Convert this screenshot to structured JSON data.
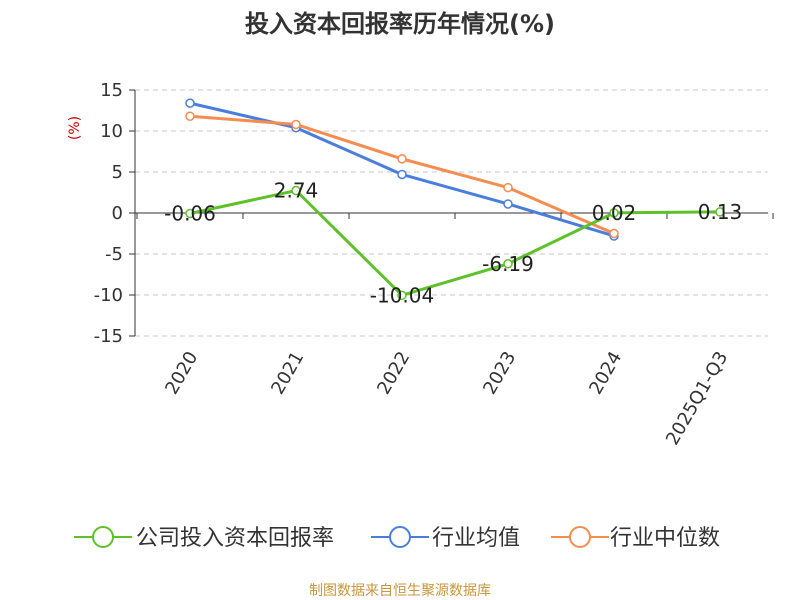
{
  "title": "投入资本回报率历年情况(%)",
  "source": "制图数据来自恒生聚源数据库",
  "chart_data": {
    "type": "line",
    "categories": [
      "2020",
      "2021",
      "2022",
      "2023",
      "2024",
      "2025Q1-Q3"
    ],
    "ylabel": "(%)",
    "ylim": [
      -15,
      15
    ],
    "yticks": [
      15,
      10,
      5,
      0,
      -5,
      -10,
      -15
    ],
    "grid": true,
    "legend_position": "bottom",
    "series": [
      {
        "name": "公司投入资本回报率",
        "color": "#5ec12a",
        "values": [
          -0.06,
          2.74,
          -10.04,
          -6.19,
          0.02,
          0.13
        ],
        "labels": [
          "-0.06",
          "2.74",
          "-10.04",
          "-6.19",
          "0.02",
          "0.13"
        ]
      },
      {
        "name": "行业均值",
        "color": "#4a7edc",
        "values": [
          13.4,
          10.4,
          4.7,
          1.1,
          -2.8,
          null
        ]
      },
      {
        "name": "行业中位数",
        "color": "#f58c50",
        "values": [
          11.8,
          10.8,
          6.6,
          3.1,
          -2.5,
          null
        ]
      }
    ]
  }
}
